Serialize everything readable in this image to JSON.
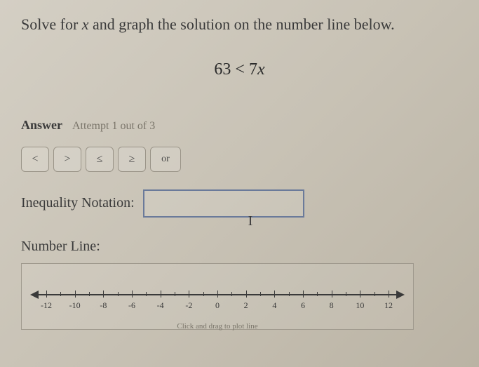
{
  "question_prefix": "Solve for ",
  "question_var": "x",
  "question_suffix": " and graph the solution on the number line below.",
  "equation_lhs": "63",
  "equation_op": "<",
  "equation_rhs_coef": "7",
  "equation_rhs_var": "x",
  "answer_label": "Answer",
  "attempt_text": "Attempt 1 out of 3",
  "buttons": {
    "lt": "<",
    "gt": ">",
    "le": "≤",
    "ge": "≥",
    "or": "or"
  },
  "notation_label": "Inequality Notation:",
  "notation_value": "",
  "numberline_label": "Number Line:",
  "numberline": {
    "min": -12,
    "max": 12,
    "major_step": 2,
    "labels": [
      "-12",
      "-10",
      "-8",
      "-6",
      "-4",
      "-2",
      "0",
      "2",
      "4",
      "6",
      "8",
      "10",
      "12"
    ],
    "axis_color": "#3a3a3a",
    "label_fontsize": 12
  },
  "hint_text": "Click and drag to plot line",
  "colors": {
    "text": "#3a3a3a",
    "muted": "#7a756a",
    "input_border": "#6a7a9a",
    "button_border": "#9a9488",
    "container_border": "#a09a8e"
  }
}
